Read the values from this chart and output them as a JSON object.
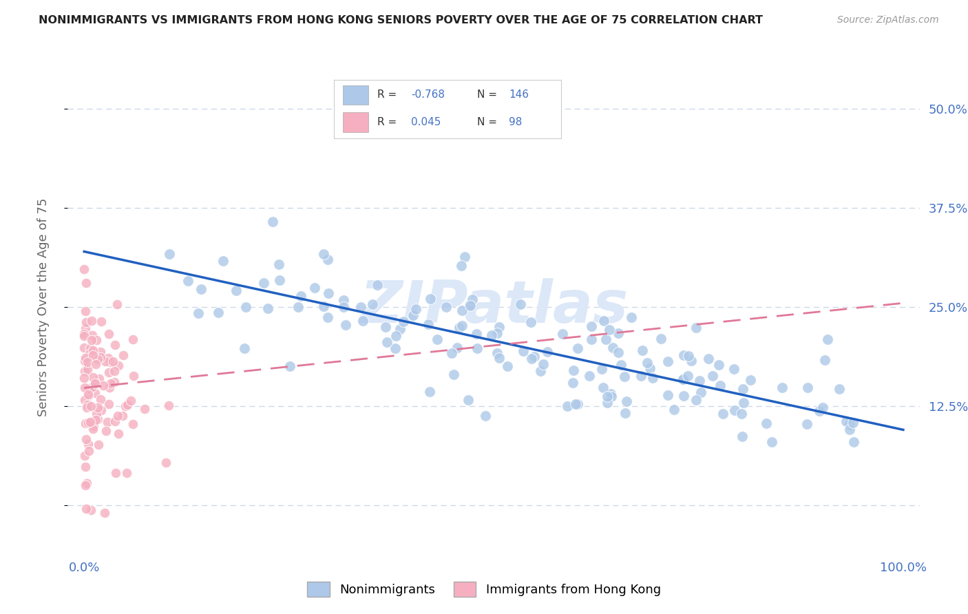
{
  "title": "NONIMMIGRANTS VS IMMIGRANTS FROM HONG KONG SENIORS POVERTY OVER THE AGE OF 75 CORRELATION CHART",
  "source": "Source: ZipAtlas.com",
  "ylabel": "Seniors Poverty Over the Age of 75",
  "xlim": [
    -0.02,
    1.02
  ],
  "ylim": [
    -0.06,
    0.56
  ],
  "yticks": [
    0.0,
    0.125,
    0.25,
    0.375,
    0.5
  ],
  "ytick_labels": [
    "",
    "12.5%",
    "25.0%",
    "37.5%",
    "50.0%"
  ],
  "xtick_labels": [
    "0.0%",
    "",
    "",
    "",
    "100.0%"
  ],
  "nonimm_R": -0.768,
  "nonimm_N": 146,
  "imm_R": 0.045,
  "imm_N": 98,
  "nonimm_color": "#adc8e8",
  "imm_color": "#f5afc0",
  "nonimm_line_color": "#2060c0",
  "imm_line_color": "#e07898",
  "grid_color": "#c8d4e8",
  "title_color": "#222222",
  "axis_label_color": "#666666",
  "tick_color": "#4472c4",
  "watermark": "ZIPatlas",
  "watermark_color": "#dce8f8",
  "background_color": "#ffffff",
  "blue_line_x0": 0.0,
  "blue_line_y0": 0.32,
  "blue_line_x1": 1.0,
  "blue_line_y1": 0.095,
  "pink_line_x0": 0.0,
  "pink_line_y0": 0.148,
  "pink_line_x1": 1.0,
  "pink_line_y1": 0.255
}
